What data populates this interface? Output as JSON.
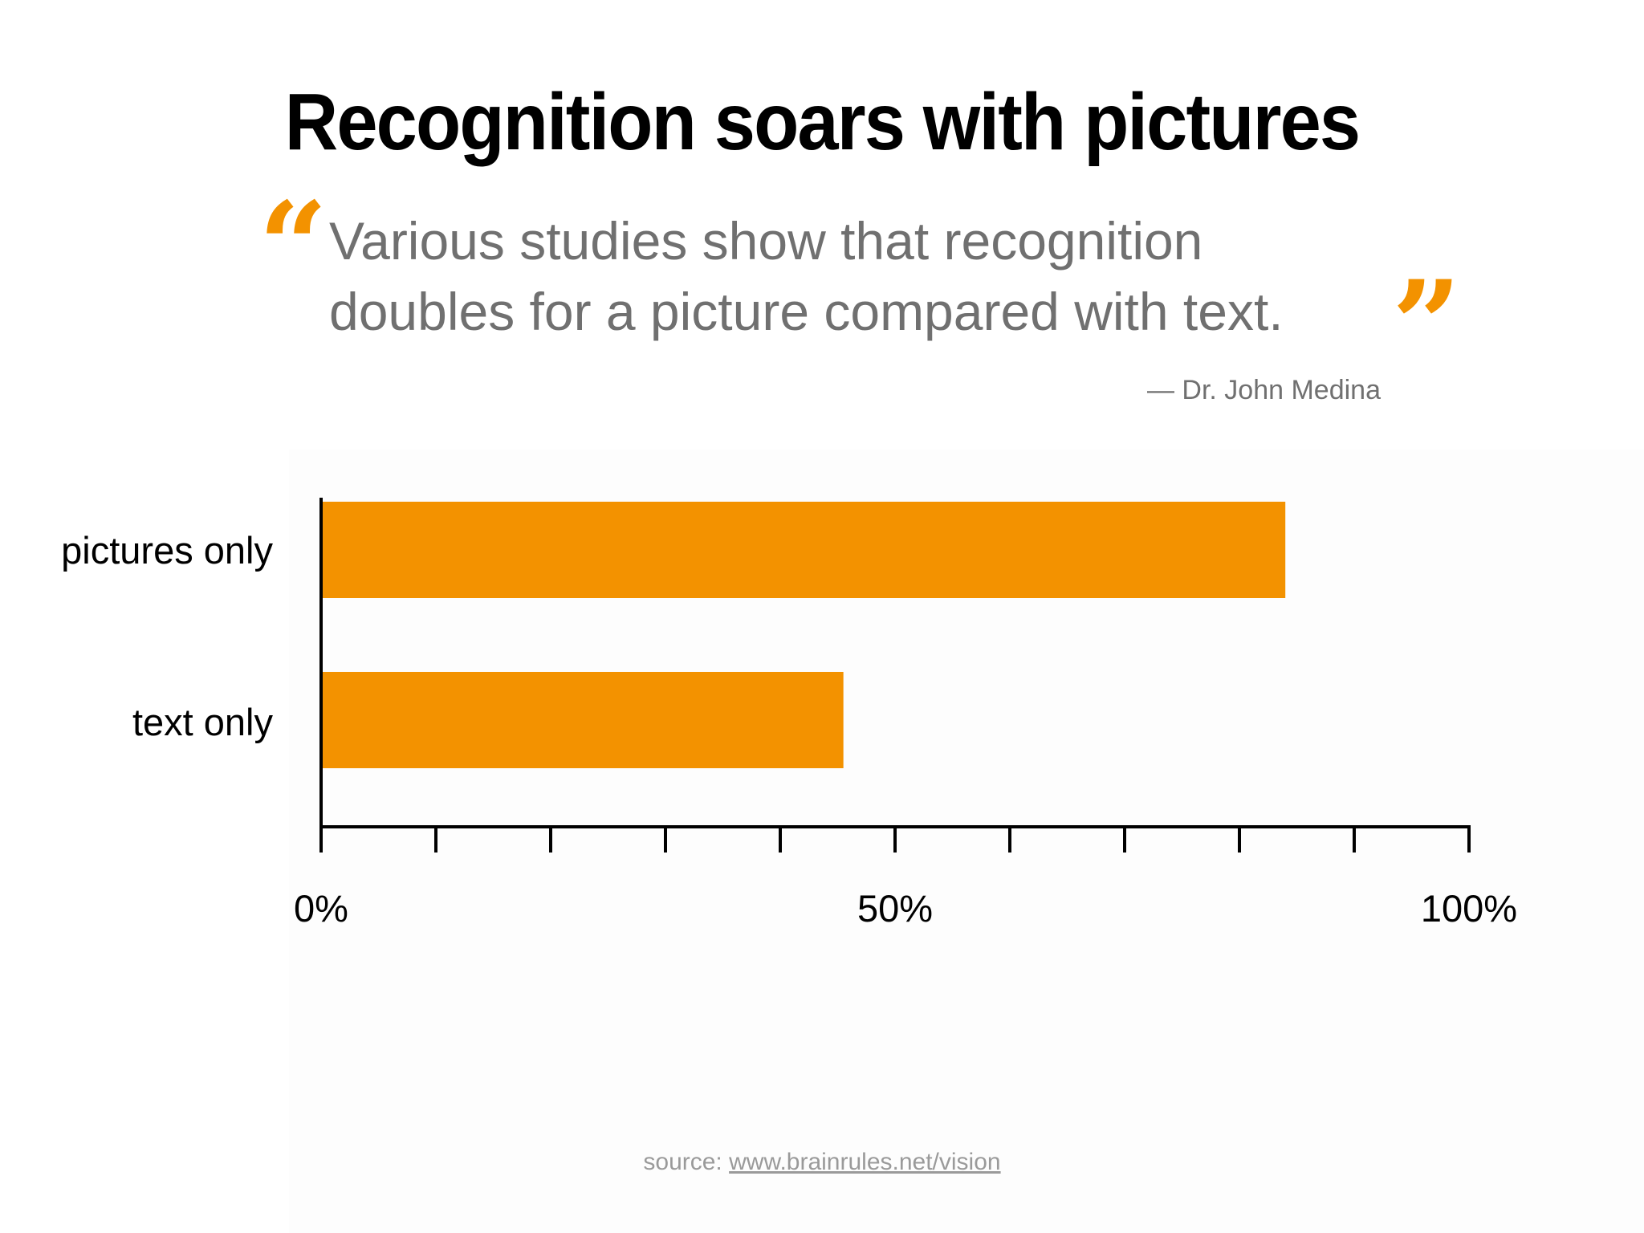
{
  "slide": {
    "title": "Recognition soars with pictures",
    "quote": {
      "open_mark": "“",
      "close_mark": "”",
      "line1": "Various studies show that recognition",
      "line2": "doubles for a picture compared with text.",
      "attribution": "— Dr. John Medina"
    },
    "source": {
      "prefix": "source: ",
      "link_text": "www.brainrules.net/vision"
    }
  },
  "colors": {
    "accent": "#f39200",
    "quote_text": "#707070",
    "axis": "#000000",
    "source_text": "#9a9a9a"
  },
  "chart_data": {
    "type": "bar",
    "orientation": "horizontal",
    "title": "",
    "categories": [
      "pictures only",
      "text only"
    ],
    "values": [
      84,
      45.5
    ],
    "unit": "%",
    "xlim": [
      0,
      100
    ],
    "xticks": [
      0,
      10,
      20,
      30,
      40,
      50,
      60,
      70,
      80,
      90,
      100
    ],
    "xtick_labels": [
      {
        "value": 0,
        "label": "0%"
      },
      {
        "value": 50,
        "label": "50%"
      },
      {
        "value": 100,
        "label": "100%"
      }
    ],
    "xlabel": "",
    "ylabel": "",
    "grid": false,
    "legend": "none"
  }
}
